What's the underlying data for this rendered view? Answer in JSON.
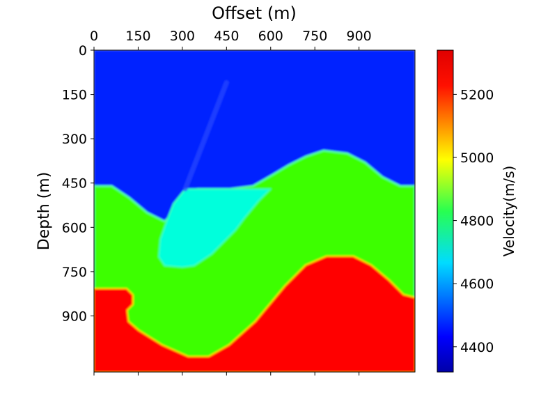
{
  "chart_data": {
    "type": "heatmap",
    "title": "",
    "xlabel": "Offset (m)",
    "ylabel": "Depth (m)",
    "x_axis_position": "top",
    "y_axis_inverted": true,
    "xlim": [
      0,
      1090
    ],
    "ylim": [
      0,
      1090
    ],
    "x_ticks": [
      0,
      150,
      300,
      450,
      600,
      750,
      900
    ],
    "y_ticks": [
      0,
      150,
      300,
      450,
      600,
      750,
      900
    ],
    "x_tick_labels": [
      "0",
      "150",
      "300",
      "450",
      "600",
      "750",
      "900"
    ],
    "y_tick_labels": [
      "0",
      "150",
      "300",
      "450",
      "600",
      "750",
      "900"
    ],
    "grid": false,
    "colormap": "jet",
    "colorbar": {
      "label": "Velocity(m/s)",
      "range": [
        4320,
        5340
      ],
      "ticks": [
        4400,
        4600,
        4800,
        5000,
        5200
      ],
      "tick_labels": [
        "4400",
        "4600",
        "4800",
        "5000",
        "5200"
      ]
    },
    "layers": [
      {
        "velocity": 4350,
        "color": "#0020ff",
        "region": "upper layer"
      },
      {
        "velocity": 4620,
        "color": "#00ffdc",
        "region": "wedge / channel body"
      },
      {
        "velocity": 4880,
        "color": "#3cff00",
        "region": "middle folded layer"
      },
      {
        "velocity": 5320,
        "color": "#ff0000",
        "region": "deep folded layer"
      }
    ],
    "boundaries": {
      "top_of_middle_layer": [
        [
          0,
          460
        ],
        [
          60,
          460
        ],
        [
          120,
          500
        ],
        [
          180,
          550
        ],
        [
          240,
          580
        ],
        [
          300,
          520
        ],
        [
          350,
          470
        ],
        [
          460,
          470
        ],
        [
          540,
          460
        ],
        [
          610,
          420
        ],
        [
          660,
          390
        ],
        [
          720,
          360
        ],
        [
          780,
          340
        ],
        [
          860,
          350
        ],
        [
          920,
          380
        ],
        [
          980,
          430
        ],
        [
          1040,
          460
        ],
        [
          1090,
          460
        ]
      ],
      "wedge_outline": [
        [
          250,
          570
        ],
        [
          270,
          520
        ],
        [
          310,
          470
        ],
        [
          600,
          470
        ],
        [
          560,
          510
        ],
        [
          510,
          570
        ],
        [
          480,
          610
        ],
        [
          440,
          650
        ],
        [
          400,
          690
        ],
        [
          340,
          730
        ],
        [
          300,
          735
        ],
        [
          240,
          730
        ],
        [
          220,
          700
        ],
        [
          225,
          640
        ]
      ],
      "top_of_deep_layer": [
        [
          0,
          810
        ],
        [
          110,
          810
        ],
        [
          130,
          830
        ],
        [
          130,
          860
        ],
        [
          110,
          880
        ],
        [
          115,
          920
        ],
        [
          150,
          950
        ],
        [
          230,
          1000
        ],
        [
          320,
          1040
        ],
        [
          390,
          1040
        ],
        [
          460,
          1000
        ],
        [
          550,
          920
        ],
        [
          650,
          800
        ],
        [
          720,
          730
        ],
        [
          790,
          700
        ],
        [
          880,
          700
        ],
        [
          940,
          730
        ],
        [
          1000,
          780
        ],
        [
          1050,
          830
        ],
        [
          1090,
          840
        ]
      ],
      "fault_trace": [
        [
          310,
          470
        ],
        [
          450,
          110
        ]
      ]
    }
  }
}
